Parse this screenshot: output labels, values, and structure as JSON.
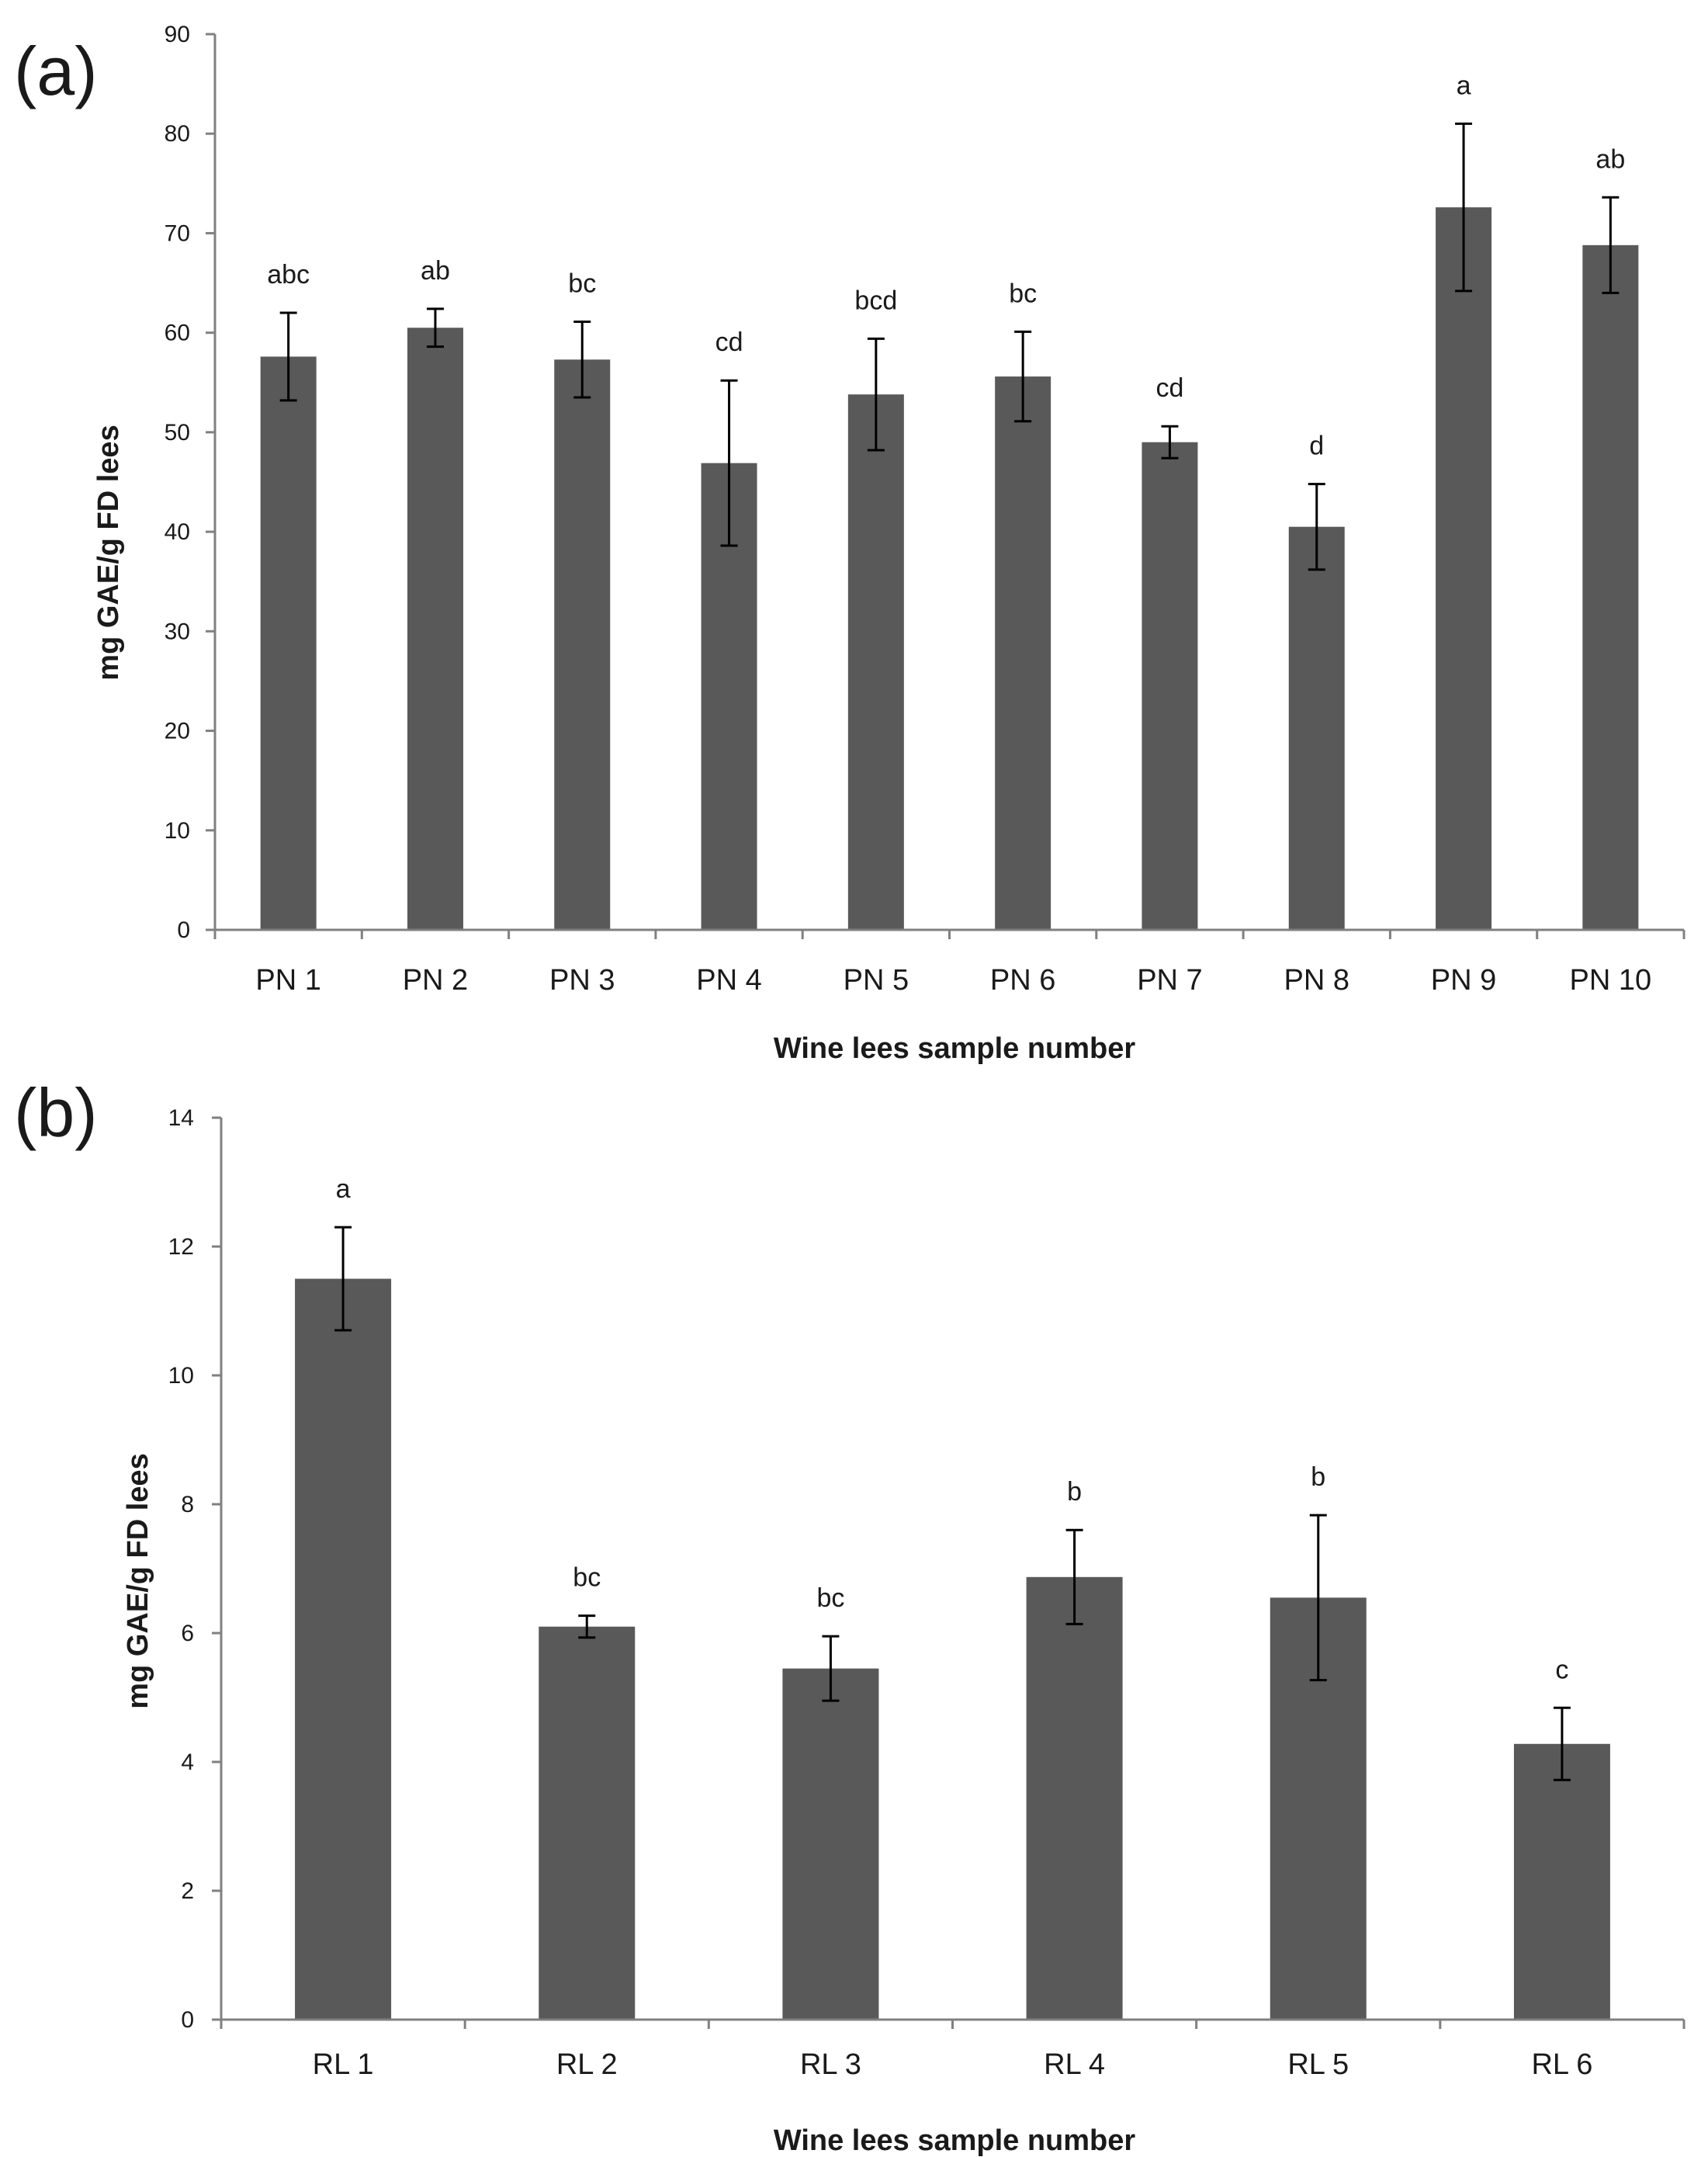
{
  "colors": {
    "bar": "#595959",
    "axis": "#808080",
    "error_bar": "#000000",
    "text": "#1a1a1a"
  },
  "chart_data": [
    {
      "panel_label": "(a)",
      "type": "bar",
      "categories": [
        "PN 1",
        "PN 2",
        "PN 3",
        "PN 4",
        "PN 5",
        "PN 6",
        "PN 7",
        "PN 8",
        "PN 9",
        "PN 10"
      ],
      "values": [
        57.6,
        60.5,
        57.3,
        46.9,
        53.8,
        55.6,
        49.0,
        40.5,
        72.6,
        68.8
      ],
      "errors": [
        4.4,
        1.9,
        3.8,
        8.3,
        5.6,
        4.5,
        1.6,
        4.3,
        8.4,
        4.8
      ],
      "significance": [
        "abc",
        "ab",
        "bc",
        "cd",
        "bcd",
        "bc",
        "cd",
        "d",
        "a",
        "ab"
      ],
      "ylim": [
        0,
        90
      ],
      "yticks": [
        0,
        10,
        20,
        30,
        40,
        50,
        60,
        70,
        80,
        90
      ],
      "ytick_labels": [
        "0",
        "10",
        "20",
        "30",
        "40",
        "50",
        "60",
        "70",
        "80",
        "90"
      ],
      "xlabel": "Wine lees sample number",
      "ylabel": "mg GAE/g FD lees"
    },
    {
      "panel_label": "(b)",
      "type": "bar",
      "categories": [
        "RL 1",
        "RL 2",
        "RL 3",
        "RL 4",
        "RL 5",
        "RL 6"
      ],
      "values": [
        11.5,
        6.1,
        5.45,
        6.87,
        6.55,
        4.28
      ],
      "errors": [
        0.8,
        0.17,
        0.5,
        0.73,
        1.28,
        0.56
      ],
      "significance": [
        "a",
        "bc",
        "bc",
        "b",
        "b",
        "c"
      ],
      "ylim": [
        0,
        14
      ],
      "yticks": [
        0,
        2,
        4,
        6,
        8,
        10,
        12,
        14
      ],
      "ytick_labels": [
        "0",
        "2",
        "4",
        "6",
        "8",
        "10",
        "12",
        "14"
      ],
      "xlabel": "Wine lees sample number",
      "ylabel": "mg GAE/g FD lees"
    }
  ]
}
